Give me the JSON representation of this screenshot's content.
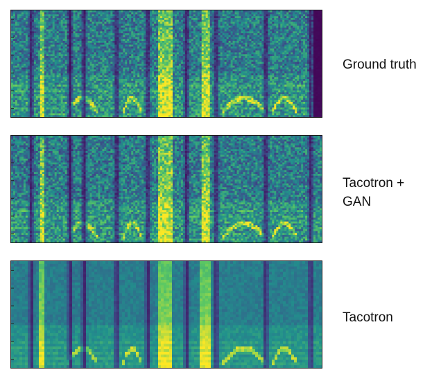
{
  "panels": [
    {
      "label": "Ground truth",
      "style": "sharp"
    },
    {
      "label": "Tacotron +\nGAN",
      "style": "sharp"
    },
    {
      "label": "Tacotron",
      "style": "smooth"
    }
  ],
  "colormap": [
    "#440154",
    "#3b528b",
    "#21918c",
    "#5ec962",
    "#fde725"
  ]
}
